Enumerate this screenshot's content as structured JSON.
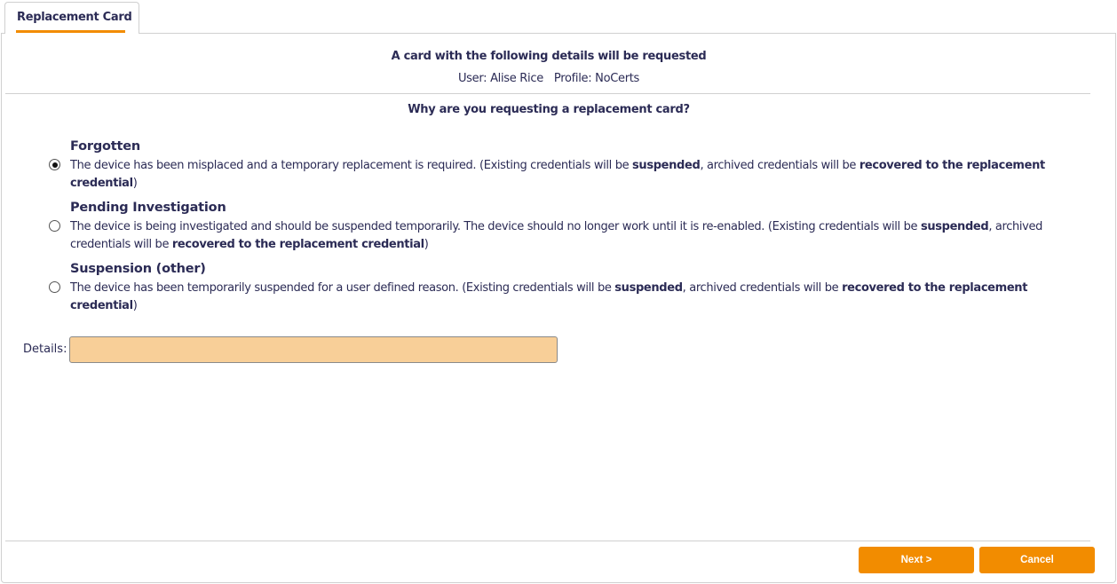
{
  "tab": {
    "label": "Replacement Card"
  },
  "header": {
    "title": "A card with the following details will be requested",
    "user": "User: Alise Rice",
    "profile": "Profile: NoCerts"
  },
  "question": "Why are you requesting a replacement card?",
  "options": [
    {
      "title": "Forgotten",
      "selected": true,
      "parts": [
        "The device has been misplaced and a temporary replacement is required. (Existing credentials will be ",
        "suspended",
        ", archived credentials will be ",
        "recovered to the replacement credential",
        ")"
      ]
    },
    {
      "title": "Pending Investigation",
      "selected": false,
      "parts": [
        "The device is being investigated and should be suspended temporarily. The device should no longer work until it is re-enabled. (Existing credentials will be ",
        "suspended",
        ", archived credentials will be ",
        "recovered to the replacement credential",
        ")"
      ]
    },
    {
      "title": "Suspension (other)",
      "selected": false,
      "parts": [
        "The device has been temporarily suspended for a user defined reason. (Existing credentials will be ",
        "suspended",
        ", archived credentials will be ",
        "recovered to the replacement credential",
        ")"
      ]
    }
  ],
  "details": {
    "label": "Details:",
    "value": ""
  },
  "buttons": {
    "next": "Next >",
    "cancel": "Cancel"
  },
  "colors": {
    "accent": "#f28c00",
    "input_bg": "#f8cf98",
    "text": "#2b2b55"
  }
}
